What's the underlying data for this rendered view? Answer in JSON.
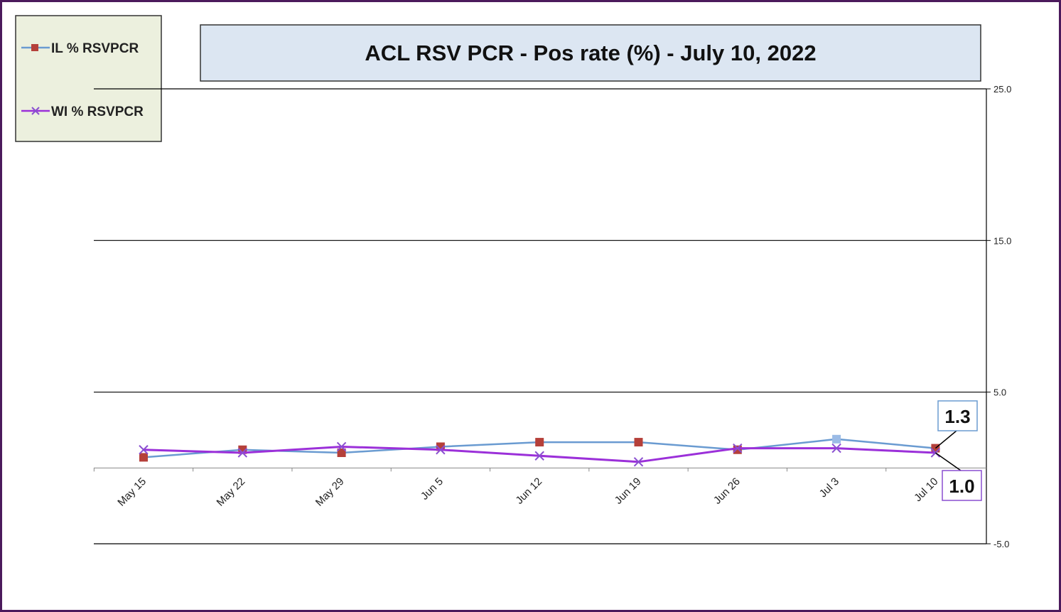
{
  "chart_data": {
    "type": "line",
    "title": "ACL RSV PCR - Pos rate (%) -  July 10, 2022",
    "categories": [
      "May 15",
      "May 22",
      "May 29",
      "Jun 5",
      "Jun 12",
      "Jun 19",
      "Jun 26",
      "Jul 3",
      "Jul 10"
    ],
    "series": [
      {
        "name": "IL % RSVPCR",
        "color": "#6a9bd1",
        "marker": "square",
        "marker_color": "#b5403a",
        "values": [
          0.7,
          1.2,
          1.0,
          1.4,
          1.7,
          1.7,
          1.2,
          1.9,
          1.3
        ]
      },
      {
        "name": "WI % RSVPCR",
        "color": "#9b30d9",
        "marker": "x",
        "marker_color": "#8a4fd0",
        "values": [
          1.2,
          1.0,
          1.4,
          1.2,
          0.8,
          0.4,
          1.3,
          1.3,
          1.0
        ]
      }
    ],
    "ylim": [
      -5.0,
      25.0
    ],
    "y_ticks": [
      "25.0",
      "15.0",
      "5.0",
      "-5.0"
    ],
    "y_axis_side": "right",
    "gridlines": [
      25,
      15,
      5,
      -5
    ],
    "legend_position": "top-left",
    "annotations": [
      {
        "text": "1.3",
        "series": "IL % RSVPCR",
        "category": "Jul 10",
        "box_color": "#6a9bd1"
      },
      {
        "text": "1.0",
        "series": "WI % RSVPCR",
        "category": "Jul 10",
        "box_color": "#8a4fd0"
      }
    ]
  }
}
